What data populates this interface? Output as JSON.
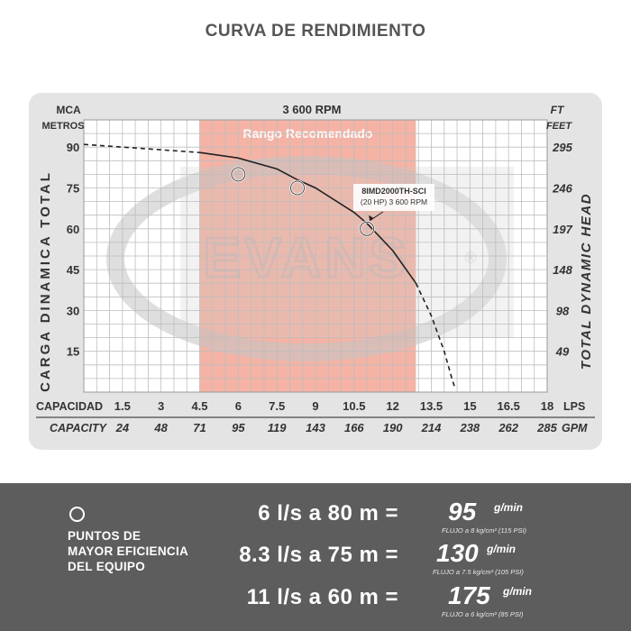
{
  "title": "CURVA DE RENDIMIENTO",
  "chart_data": {
    "type": "line",
    "rpm_label": "3 600 RPM",
    "recommended_range_label": "Rango Recomendado",
    "recommended_range_lps": [
      4.5,
      12.9
    ],
    "watermark": "EVANS",
    "left_axis": {
      "unit_top": "MCA",
      "unit_bottom": "METROS",
      "title": "CARGA DINAMICA TOTAL",
      "ticks": [
        15,
        30,
        45,
        60,
        75,
        90
      ]
    },
    "right_axis": {
      "unit_top": "FT",
      "unit_bottom": "FEET",
      "title": "TOTAL DYNAMIC HEAD",
      "ticks": [
        "49",
        "98",
        "148",
        "197",
        "246",
        "295"
      ]
    },
    "x_axis": {
      "label": "CAPACIDAD",
      "unit": "LPS",
      "ticks": [
        "1.5",
        "3",
        "4.5",
        "6",
        "7.5",
        "9",
        "10.5",
        "12",
        "13.5",
        "15",
        "16.5",
        "18"
      ]
    },
    "x_axis_secondary": {
      "label": "CAPACITY",
      "unit": "GPM",
      "ticks": [
        "24",
        "48",
        "71",
        "95",
        "119",
        "143",
        "166",
        "190",
        "214",
        "238",
        "262",
        "285"
      ]
    },
    "xlim": [
      0,
      18
    ],
    "ylim": [
      0,
      100
    ],
    "series": [
      {
        "name": "8IMD2000TH-SCI",
        "x": [
          0,
          1.5,
          3,
          4.5,
          6,
          7.5,
          8.3,
          9,
          10.5,
          11,
          12,
          12.9,
          13.5,
          14,
          14.3,
          14.4
        ],
        "y": [
          91,
          90,
          89,
          88,
          86,
          82,
          78,
          75,
          66,
          62,
          52,
          40,
          28,
          15,
          5,
          2
        ]
      }
    ],
    "annotation": {
      "line1": "8IMD2000TH-SCI",
      "line2": "(20 HP) 3 600 RPM"
    },
    "efficiency_points": [
      {
        "x": 6,
        "y": 80
      },
      {
        "x": 8.3,
        "y": 75
      },
      {
        "x": 11,
        "y": 60
      }
    ]
  },
  "legend": {
    "lines": [
      "PUNTOS DE",
      "MAYOR EFICIENCIA",
      "DEL EQUIPO"
    ]
  },
  "equations": [
    {
      "lhs": "6  l/s a 80 m  =",
      "value": "95",
      "unit": "g/min",
      "note": "FLUJO a 8 kg/cm² (115 PSI)"
    },
    {
      "lhs": "8.3  l/s a 75 m  =",
      "value": "130",
      "unit": "g/min",
      "note": "FLUJO a 7.5 kg/cm² (105 PSI)"
    },
    {
      "lhs": "11  l/s a 60 m  =",
      "value": "175",
      "unit": "g/min",
      "note": "FLUJO a 6 kg/cm² (85 PSI)"
    }
  ],
  "colors": {
    "range": "#f4b3a5",
    "panel": "#5d5d5d",
    "curve": "#222222"
  }
}
